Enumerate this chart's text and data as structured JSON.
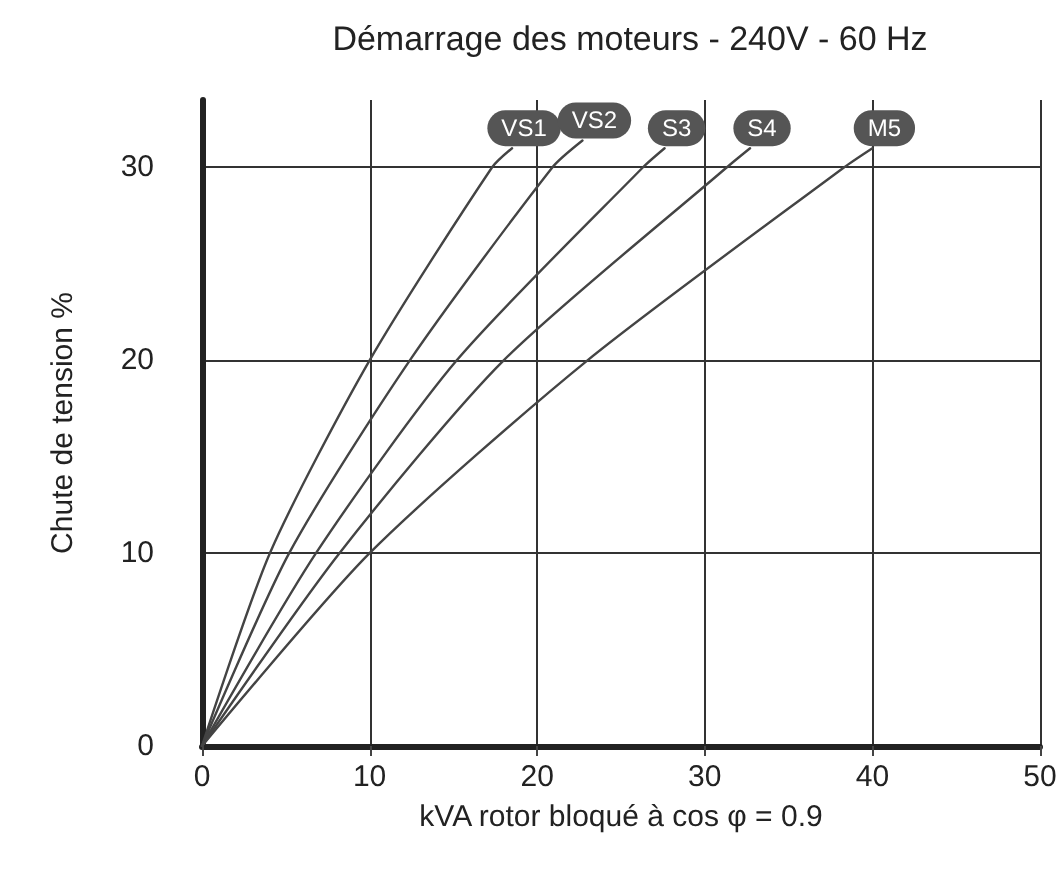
{
  "chart_data": {
    "type": "line",
    "title": "Démarrage des moteurs - 240V - 60 Hz",
    "xlabel": "kVA rotor bloqué à cos φ = 0.9",
    "ylabel": "Chute de tension %",
    "xlim": [
      0,
      50
    ],
    "xticks": [
      0,
      10,
      20,
      30,
      40,
      50
    ],
    "ylim": [
      0,
      33.5
    ],
    "yticks": [
      0,
      10,
      20,
      30
    ],
    "grid": true,
    "legend": false,
    "marker": "none",
    "line_style": "solid",
    "series": [
      {
        "name": "VS1",
        "color": "#444444",
        "x": [
          0,
          4.05,
          10,
          17.3,
          18.5
        ],
        "values": [
          0,
          10,
          20,
          30,
          31
        ]
      },
      {
        "name": "VS2",
        "color": "#444444",
        "x": [
          0,
          5.2,
          12.4,
          20.9,
          22.7
        ],
        "values": [
          0,
          10,
          20,
          30,
          31.4
        ]
      },
      {
        "name": "S3",
        "color": "#444444",
        "x": [
          0,
          6.8,
          15.2,
          26.3,
          27.6
        ],
        "values": [
          0,
          10,
          20,
          30,
          31
        ]
      },
      {
        "name": "S4",
        "color": "#444444",
        "x": [
          0,
          8.2,
          18,
          31.3,
          32.7
        ],
        "values": [
          0,
          10,
          20,
          30,
          31
        ]
      },
      {
        "name": "M5",
        "color": "#444444",
        "x": [
          0,
          10,
          23,
          38.3,
          40
        ],
        "values": [
          0,
          10,
          20,
          30,
          31
        ]
      }
    ]
  }
}
